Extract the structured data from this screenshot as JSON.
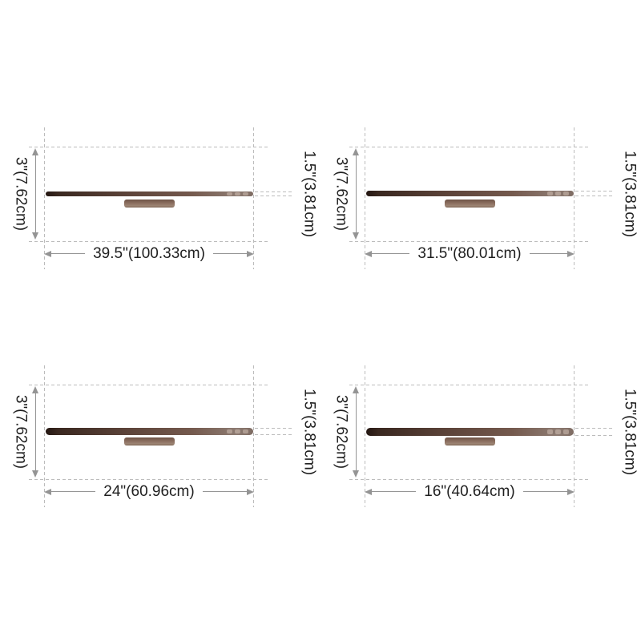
{
  "colors": {
    "background": "#ffffff",
    "dash-line": "#bcbcbc",
    "arrow": "#949494",
    "text": "#1f1f1f",
    "bar-dark": "#241712",
    "bar-mid": "#5d443a",
    "bar-light": "#8d7b72",
    "bar-notch": "#d8c6ba",
    "bracket-dark": "#6e5345",
    "bracket-mid": "#8a6e5f",
    "bracket-light": "#9d8574"
  },
  "diagrams": [
    {
      "name": "39.5 inch wall lamp",
      "width_label": "39.5\"(100.33cm)",
      "height_label": "3\"(7.62cm)",
      "thickness_label": "1.5\"(3.81cm)"
    },
    {
      "name": "31.5 inch wall lamp",
      "width_label": "31.5\"(80.01cm)",
      "height_label": "3\"(7.62cm)",
      "thickness_label": "1.5\"(3.81cm)"
    },
    {
      "name": "24 inch wall lamp",
      "width_label": "24\"(60.96cm)",
      "height_label": "3\"(7.62cm)",
      "thickness_label": "1.5\"(3.81cm)"
    },
    {
      "name": "16 inch wall lamp",
      "width_label": "16\"(40.64cm)",
      "height_label": "3\"(7.62cm)",
      "thickness_label": "1.5\"(3.81cm)"
    }
  ]
}
